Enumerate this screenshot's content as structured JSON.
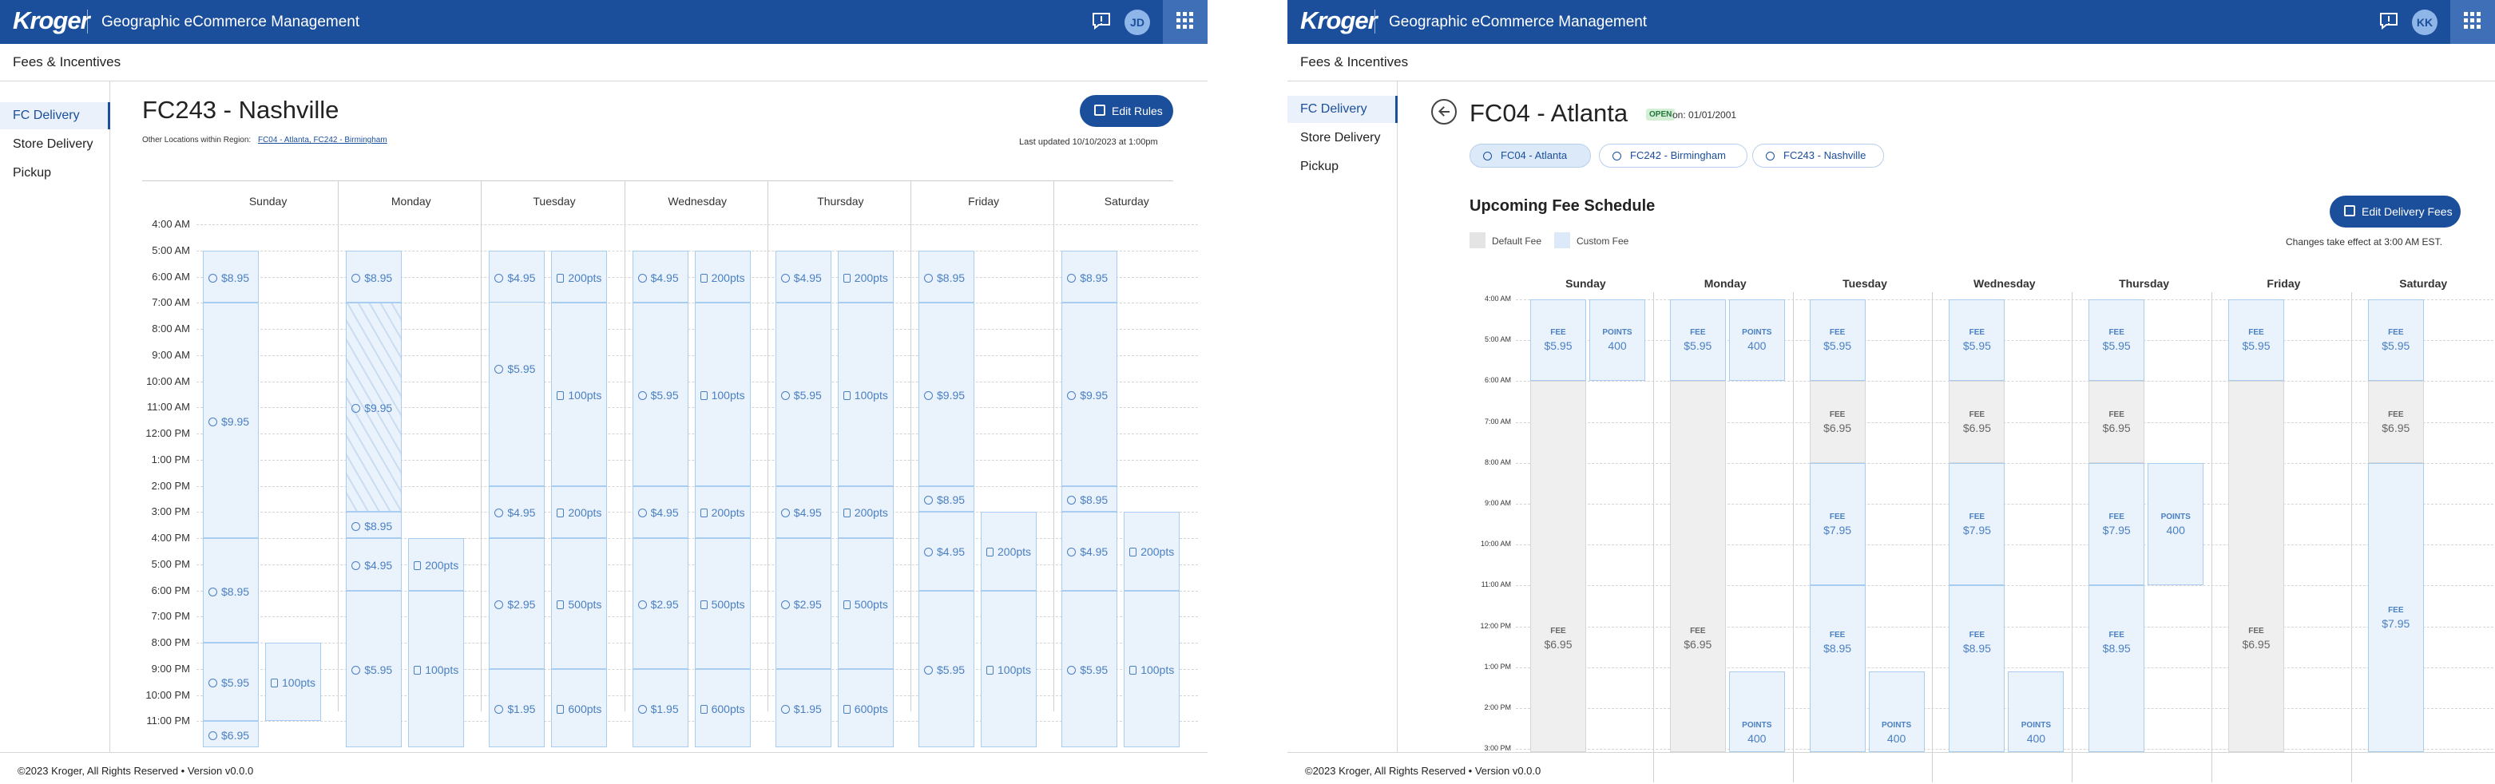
{
  "colors": {
    "brand": "#1b4f9c",
    "block_fill": "#eaf3fc",
    "block_border": "#a9cdf0",
    "default_fill": "#efefef",
    "open_badge": "#24763a"
  },
  "header": {
    "logo": "Kroger",
    "app_title": "Geographic eCommerce Management",
    "icons": [
      "message-icon",
      "avatar",
      "apps-grid-icon"
    ]
  },
  "left": {
    "avatar": "JD",
    "subheader": "Fees & Incentives",
    "nav": [
      "FC Delivery",
      "Store Delivery",
      "Pickup"
    ],
    "page_title": "FC243 - Nashville",
    "other_locations_label": "Other Locations within Region:",
    "other_locations_links": "FC04 - Atlanta, FC242 - Birmingham",
    "edit_rules": "Edit Rules",
    "last_updated": "Last updated 10/10/2023 at 1:00pm",
    "times": [
      "4:00 AM",
      "5:00 AM",
      "6:00 AM",
      "7:00 AM",
      "8:00 AM",
      "9:00 AM",
      "10:00 AM",
      "11:00 AM",
      "12:00 PM",
      "1:00 PM",
      "2:00 PM",
      "3:00 PM",
      "4:00 PM",
      "5:00 PM",
      "6:00 PM",
      "7:00 PM",
      "8:00 PM",
      "9:00 PM",
      "10:00 PM",
      "11:00 PM"
    ],
    "days": [
      "Sunday",
      "Monday",
      "Tuesday",
      "Wednesday",
      "Thursday",
      "Friday",
      "Saturday"
    ],
    "blocks": [
      {
        "d": 0,
        "c": 0,
        "s": 1,
        "e": 3,
        "icon": "fee",
        "label": "$8.95"
      },
      {
        "d": 0,
        "c": 0,
        "s": 3,
        "e": 12,
        "icon": "fee",
        "label": "$9.95"
      },
      {
        "d": 0,
        "c": 0,
        "s": 12,
        "e": 16,
        "icon": "fee",
        "label": "$8.95"
      },
      {
        "d": 0,
        "c": 0,
        "s": 16,
        "e": 19,
        "icon": "fee",
        "label": "$5.95"
      },
      {
        "d": 0,
        "c": 0,
        "s": 19,
        "e": 20,
        "icon": "fee",
        "label": "$6.95"
      },
      {
        "d": 0,
        "c": 1,
        "s": 16,
        "e": 19,
        "icon": "points",
        "label": "100pts"
      },
      {
        "d": 1,
        "c": 0,
        "s": 1,
        "e": 3,
        "icon": "fee",
        "label": "$8.95"
      },
      {
        "d": 1,
        "c": 0,
        "s": 3,
        "e": 11,
        "icon": "fee",
        "label": "$9.95",
        "hatch": true
      },
      {
        "d": 1,
        "c": 0,
        "s": 11,
        "e": 12,
        "icon": "fee",
        "label": "$8.95"
      },
      {
        "d": 1,
        "c": 0,
        "s": 12,
        "e": 14,
        "icon": "fee",
        "label": "$4.95"
      },
      {
        "d": 1,
        "c": 0,
        "s": 14,
        "e": 20,
        "icon": "fee",
        "label": "$5.95"
      },
      {
        "d": 1,
        "c": 1,
        "s": 12,
        "e": 14,
        "icon": "points",
        "label": "200pts"
      },
      {
        "d": 1,
        "c": 1,
        "s": 14,
        "e": 20,
        "icon": "points",
        "label": "100pts"
      },
      {
        "d": 2,
        "c": 0,
        "s": 1,
        "e": 10,
        "icon": "fee",
        "label": "$5.95",
        "split": 3
      },
      {
        "d": 2,
        "c": 0,
        "s": 10,
        "e": 12,
        "icon": "fee",
        "label": "$4.95"
      },
      {
        "d": 2,
        "c": 0,
        "s": 12,
        "e": 17,
        "icon": "fee",
        "label": "$2.95"
      },
      {
        "d": 2,
        "c": 0,
        "s": 17,
        "e": 20,
        "icon": "fee",
        "label": "$1.95"
      },
      {
        "d": 2,
        "c": 1,
        "s": 1,
        "e": 3,
        "icon": "points",
        "label": "200pts"
      },
      {
        "d": 2,
        "c": 1,
        "s": 3,
        "e": 10,
        "icon": "points",
        "label": "100pts"
      },
      {
        "d": 2,
        "c": 1,
        "s": 10,
        "e": 12,
        "icon": "points",
        "label": "200pts"
      },
      {
        "d": 2,
        "c": 1,
        "s": 12,
        "e": 17,
        "icon": "points",
        "label": "500pts"
      },
      {
        "d": 2,
        "c": 1,
        "s": 17,
        "e": 20,
        "icon": "points",
        "label": "600pts"
      },
      {
        "d": 2,
        "c": 0,
        "s": 1,
        "e": 3,
        "icon": "fee",
        "label": "$4.95"
      },
      {
        "d": 3,
        "c": 0,
        "s": 1,
        "e": 3,
        "icon": "fee",
        "label": "$4.95"
      },
      {
        "d": 3,
        "c": 0,
        "s": 3,
        "e": 10,
        "icon": "fee",
        "label": "$5.95"
      },
      {
        "d": 3,
        "c": 0,
        "s": 10,
        "e": 12,
        "icon": "fee",
        "label": "$4.95"
      },
      {
        "d": 3,
        "c": 0,
        "s": 12,
        "e": 17,
        "icon": "fee",
        "label": "$2.95"
      },
      {
        "d": 3,
        "c": 0,
        "s": 17,
        "e": 20,
        "icon": "fee",
        "label": "$1.95"
      },
      {
        "d": 3,
        "c": 1,
        "s": 1,
        "e": 3,
        "icon": "points",
        "label": "200pts"
      },
      {
        "d": 3,
        "c": 1,
        "s": 3,
        "e": 10,
        "icon": "points",
        "label": "100pts"
      },
      {
        "d": 3,
        "c": 1,
        "s": 10,
        "e": 12,
        "icon": "points",
        "label": "200pts"
      },
      {
        "d": 3,
        "c": 1,
        "s": 12,
        "e": 17,
        "icon": "points",
        "label": "500pts"
      },
      {
        "d": 3,
        "c": 1,
        "s": 17,
        "e": 20,
        "icon": "points",
        "label": "600pts"
      },
      {
        "d": 4,
        "c": 0,
        "s": 1,
        "e": 3,
        "icon": "fee",
        "label": "$4.95"
      },
      {
        "d": 4,
        "c": 0,
        "s": 3,
        "e": 10,
        "icon": "fee",
        "label": "$5.95"
      },
      {
        "d": 4,
        "c": 0,
        "s": 10,
        "e": 12,
        "icon": "fee",
        "label": "$4.95"
      },
      {
        "d": 4,
        "c": 0,
        "s": 12,
        "e": 17,
        "icon": "fee",
        "label": "$2.95"
      },
      {
        "d": 4,
        "c": 0,
        "s": 17,
        "e": 20,
        "icon": "fee",
        "label": "$1.95"
      },
      {
        "d": 4,
        "c": 1,
        "s": 1,
        "e": 3,
        "icon": "points",
        "label": "200pts"
      },
      {
        "d": 4,
        "c": 1,
        "s": 3,
        "e": 10,
        "icon": "points",
        "label": "100pts"
      },
      {
        "d": 4,
        "c": 1,
        "s": 10,
        "e": 12,
        "icon": "points",
        "label": "200pts"
      },
      {
        "d": 4,
        "c": 1,
        "s": 12,
        "e": 17,
        "icon": "points",
        "label": "500pts"
      },
      {
        "d": 4,
        "c": 1,
        "s": 17,
        "e": 20,
        "icon": "points",
        "label": "600pts"
      },
      {
        "d": 5,
        "c": 0,
        "s": 1,
        "e": 3,
        "icon": "fee",
        "label": "$8.95"
      },
      {
        "d": 5,
        "c": 0,
        "s": 3,
        "e": 10,
        "icon": "fee",
        "label": "$9.95"
      },
      {
        "d": 5,
        "c": 0,
        "s": 10,
        "e": 11,
        "icon": "fee",
        "label": "$8.95"
      },
      {
        "d": 5,
        "c": 0,
        "s": 11,
        "e": 14,
        "icon": "fee",
        "label": "$4.95"
      },
      {
        "d": 5,
        "c": 0,
        "s": 14,
        "e": 20,
        "icon": "fee",
        "label": "$5.95"
      },
      {
        "d": 5,
        "c": 1,
        "s": 11,
        "e": 14,
        "icon": "points",
        "label": "200pts"
      },
      {
        "d": 5,
        "c": 1,
        "s": 14,
        "e": 20,
        "icon": "points",
        "label": "100pts"
      },
      {
        "d": 6,
        "c": 0,
        "s": 1,
        "e": 3,
        "icon": "fee",
        "label": "$8.95"
      },
      {
        "d": 6,
        "c": 0,
        "s": 3,
        "e": 10,
        "icon": "fee",
        "label": "$9.95"
      },
      {
        "d": 6,
        "c": 0,
        "s": 10,
        "e": 11,
        "icon": "fee",
        "label": "$8.95"
      },
      {
        "d": 6,
        "c": 0,
        "s": 11,
        "e": 14,
        "icon": "fee",
        "label": "$4.95"
      },
      {
        "d": 6,
        "c": 0,
        "s": 14,
        "e": 20,
        "icon": "fee",
        "label": "$5.95"
      },
      {
        "d": 6,
        "c": 1,
        "s": 11,
        "e": 14,
        "icon": "points",
        "label": "200pts"
      },
      {
        "d": 6,
        "c": 1,
        "s": 14,
        "e": 20,
        "icon": "points",
        "label": "100pts"
      }
    ],
    "footer": "©2023 Kroger, All Rights Reserved • Version v0.0.0"
  },
  "right": {
    "avatar": "KK",
    "subheader": "Fees & Incentives",
    "nav": [
      "FC Delivery",
      "Store Delivery",
      "Pickup"
    ],
    "page_title": "FC04 - Atlanta",
    "status_badge": "OPEN",
    "open_date": "on: 01/01/2001",
    "location_chips": [
      "FC04 - Atlanta",
      "FC242 - Birmingham",
      "FC243 - Nashville"
    ],
    "schedule_title": "Upcoming Fee Schedule",
    "edit_fees": "Edit Delivery Fees",
    "legend": {
      "default": "Default Fee",
      "custom": "Custom Fee"
    },
    "changes_note": "Changes take effect at 3:00 AM EST.",
    "times": [
      "4:00 AM",
      "5:00 AM",
      "6:00 AM",
      "7:00 AM",
      "8:00 AM",
      "9:00 AM",
      "10:00 AM",
      "11:00 AM",
      "12:00 PM",
      "1:00 PM",
      "2:00 PM",
      "3:00 PM"
    ],
    "days": [
      "Sunday",
      "Monday",
      "Tuesday",
      "Wednesday",
      "Thursday",
      "Friday",
      "Saturday"
    ],
    "blocks": [
      {
        "d": 0,
        "c": 0,
        "s": 0,
        "e": 2,
        "type": "FEE",
        "value": "$5.95",
        "kind": "custom"
      },
      {
        "d": 0,
        "c": 1,
        "s": 0,
        "e": 2,
        "type": "POINTS",
        "value": "400",
        "kind": "custom"
      },
      {
        "d": 0,
        "c": 0,
        "s": 2,
        "e": 12,
        "type": "FEE",
        "value": "$6.95",
        "kind": "default",
        "lab": 8.3
      },
      {
        "d": 1,
        "c": 0,
        "s": 0,
        "e": 2,
        "type": "FEE",
        "value": "$5.95",
        "kind": "custom"
      },
      {
        "d": 1,
        "c": 1,
        "s": 0,
        "e": 2,
        "type": "POINTS",
        "value": "400",
        "kind": "custom"
      },
      {
        "d": 1,
        "c": 0,
        "s": 2,
        "e": 12,
        "type": "FEE",
        "value": "$6.95",
        "kind": "default",
        "lab": 8.3
      },
      {
        "d": 1,
        "c": 1,
        "s": 9.1,
        "e": 12,
        "type": "POINTS",
        "value": "400",
        "kind": "custom",
        "lab": 10.6
      },
      {
        "d": 2,
        "c": 0,
        "s": 0,
        "e": 2,
        "type": "FEE",
        "value": "$5.95",
        "kind": "custom"
      },
      {
        "d": 2,
        "c": 0,
        "s": 2,
        "e": 4,
        "type": "FEE",
        "value": "$6.95",
        "kind": "default"
      },
      {
        "d": 2,
        "c": 0,
        "s": 4,
        "e": 7,
        "type": "FEE",
        "value": "$7.95",
        "kind": "custom"
      },
      {
        "d": 2,
        "c": 0,
        "s": 7,
        "e": 12,
        "type": "FEE",
        "value": "$8.95",
        "kind": "custom",
        "lab": 8.4
      },
      {
        "d": 2,
        "c": 1,
        "s": 9.1,
        "e": 12,
        "type": "POINTS",
        "value": "400",
        "kind": "custom",
        "lab": 10.6
      },
      {
        "d": 3,
        "c": 0,
        "s": 0,
        "e": 2,
        "type": "FEE",
        "value": "$5.95",
        "kind": "custom"
      },
      {
        "d": 3,
        "c": 0,
        "s": 2,
        "e": 4,
        "type": "FEE",
        "value": "$6.95",
        "kind": "default"
      },
      {
        "d": 3,
        "c": 0,
        "s": 4,
        "e": 7,
        "type": "FEE",
        "value": "$7.95",
        "kind": "custom"
      },
      {
        "d": 3,
        "c": 0,
        "s": 7,
        "e": 12,
        "type": "FEE",
        "value": "$8.95",
        "kind": "custom",
        "lab": 8.4
      },
      {
        "d": 3,
        "c": 1,
        "s": 9.1,
        "e": 12,
        "type": "POINTS",
        "value": "400",
        "kind": "custom",
        "lab": 10.6
      },
      {
        "d": 4,
        "c": 0,
        "s": 0,
        "e": 2,
        "type": "FEE",
        "value": "$5.95",
        "kind": "custom"
      },
      {
        "d": 4,
        "c": 0,
        "s": 2,
        "e": 4,
        "type": "FEE",
        "value": "$6.95",
        "kind": "default"
      },
      {
        "d": 4,
        "c": 0,
        "s": 4,
        "e": 7,
        "type": "FEE",
        "value": "$7.95",
        "kind": "custom"
      },
      {
        "d": 4,
        "c": 0,
        "s": 7,
        "e": 12,
        "type": "FEE",
        "value": "$8.95",
        "kind": "custom",
        "lab": 8.4
      },
      {
        "d": 4,
        "c": 1,
        "s": 4,
        "e": 7,
        "type": "POINTS",
        "value": "400",
        "kind": "custom"
      },
      {
        "d": 5,
        "c": 0,
        "s": 0,
        "e": 2,
        "type": "FEE",
        "value": "$5.95",
        "kind": "custom"
      },
      {
        "d": 5,
        "c": 0,
        "s": 2,
        "e": 12,
        "type": "FEE",
        "value": "$6.95",
        "kind": "default",
        "lab": 8.3
      },
      {
        "d": 6,
        "c": 0,
        "s": 0,
        "e": 2,
        "type": "FEE",
        "value": "$5.95",
        "kind": "custom"
      },
      {
        "d": 6,
        "c": 0,
        "s": 2,
        "e": 4,
        "type": "FEE",
        "value": "$6.95",
        "kind": "default"
      },
      {
        "d": 6,
        "c": 0,
        "s": 4,
        "e": 12,
        "type": "FEE",
        "value": "$7.95",
        "kind": "custom",
        "lab": 7.8
      }
    ],
    "footer": "©2023 Kroger, All Rights Reserved • Version v0.0.0"
  }
}
